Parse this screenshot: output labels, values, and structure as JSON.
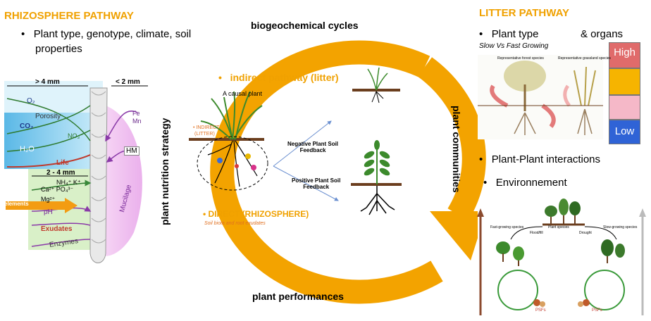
{
  "rhizosphere": {
    "title": "RHIZOSPHERE PATHWAY",
    "bullet": "Plant type, genotype, climate, soil",
    "bullet_cont": "properties",
    "figure": {
      "dim_top_left": "> 4 mm",
      "dim_top_right": "< 2 mm",
      "o2": "O₂",
      "porosity": "Porosity",
      "co2": "CO₂",
      "no3": "NO₃⁻",
      "h2o": "H₂O",
      "life": "Life",
      "fe_mn": "Fe\nMn",
      "hm": "HM",
      "dim_mid": "2 - 4 mm",
      "nutrients1": "NH₄⁺ K⁺",
      "nutrients2": "Ca²⁺ PO₄³⁻",
      "nutrients3": "Mg²⁺",
      "excess": "Excess elements",
      "ph": "pH",
      "exudates": "Exudates",
      "enzymes": "Enzymes",
      "mucilage": "Mucilage"
    }
  },
  "ring": {
    "top": "biogeochemical cycles",
    "left": "plant nutrition strategy",
    "right": "plant communities",
    "bottom": "plant performances"
  },
  "center": {
    "indirect": "indirect pathway (litter)",
    "causal_plant": "A causal plant",
    "indirect_small": "INDIRECT",
    "indirect_small2": "(LITTER)",
    "negative": "Negative Plant Soil",
    "negative2": "Feedback",
    "positive": "Positive Plant Soil",
    "positive2": "Feedback",
    "direct": "DIRECT (RHIZOSPHERE)",
    "direct_sub": "Soil biota and root exudates"
  },
  "litter": {
    "title": "LITTER PATHWAY",
    "bullet1a": "Plant type",
    "bullet1b": "& organs",
    "sub": "Slow Vs Fast Growing",
    "fig_left": "Representative forest species",
    "fig_right": "Representative grassland species",
    "legend_high": "High",
    "legend_low": "Low",
    "bullet2": "Plant-Plant interactions",
    "bullet3": "Environnement",
    "colors": {
      "high": "#e06b6b",
      "mid": "#f6b400",
      "pink": "#f5b8c8",
      "low": "#2f63d6"
    }
  },
  "bottom_fig": {
    "left_label": "Fast-growing species",
    "center_label": "Plant species",
    "right_label": "Slow-growing species",
    "flood": "Flood/fill",
    "drought": "Drought",
    "psf_left": "PSFs",
    "psf_right": "PSFs"
  }
}
